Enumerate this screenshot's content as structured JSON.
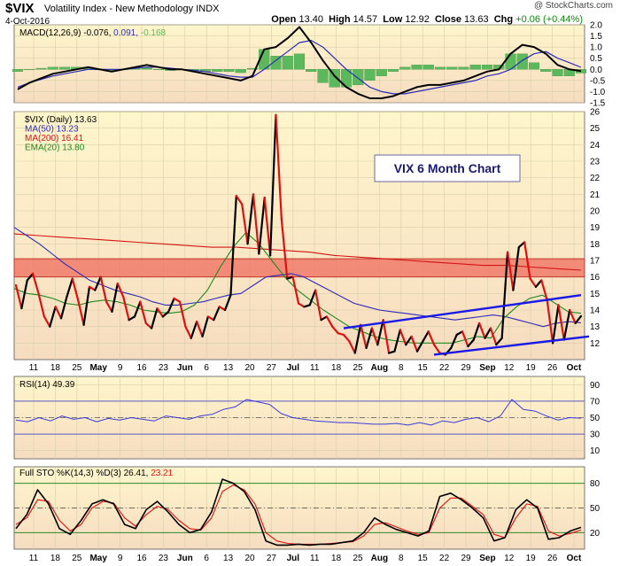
{
  "header": {
    "symbol": "$VIX",
    "name": "Volatility Index - New Methodology INDX",
    "date": "4-Oct-2016",
    "watermark": "@ StockCharts.com",
    "open_label": "Open",
    "open": "13.40",
    "high_label": "High",
    "high": "14.57",
    "low_label": "Low",
    "low": "12.92",
    "close_label": "Close",
    "close": "13.63",
    "chg_label": "Chg",
    "chg": "+0.06 (+0.44%)"
  },
  "colors": {
    "panel_bg_top": "#fff6cc",
    "panel_bg_bottom": "#f6dcc0",
    "price": "#000000",
    "price_down": "#e01010",
    "ma50": "#2a2ab8",
    "ma200": "#d21414",
    "ema20": "#1e8a1e",
    "resistance_zone": "#f07a6a",
    "trendline": "#1a1ae6",
    "macd_hist": "#5cb85c",
    "rsi": "#3b3bd8",
    "sto_k": "#000000",
    "sto_d": "#e01010"
  },
  "annotation": "VIX 6 Month Chart",
  "x_axis_labels": [
    "11",
    "18",
    "25",
    "May",
    "9",
    "16",
    "23",
    "Jun",
    "6",
    "13",
    "20",
    "27",
    "Jul",
    "11",
    "18",
    "25",
    "Aug",
    "8",
    "15",
    "22",
    "29",
    "Sep",
    "12",
    "19",
    "26",
    "Oct"
  ],
  "chart_data": [
    {
      "type": "line",
      "title": "MACD(12,26,9) -0.076, 0.091, -0.168",
      "legend": [
        {
          "label": "MACD(12,26,9)",
          "value": "-0.076",
          "color": "#000000"
        },
        {
          "label": "",
          "value": "0.091",
          "color": "#2a2ab8"
        },
        {
          "label": "",
          "value": "-0.168",
          "color": "#5cb85c"
        }
      ],
      "ylim": [
        -1.5,
        2.0
      ],
      "yticks": [
        "2.0",
        "1.5",
        "1.0",
        "0.5",
        "0.0",
        "-0.5",
        "-1.0",
        "-1.5"
      ],
      "series": [
        {
          "name": "MACD",
          "values": [
            -0.9,
            -0.6,
            -0.4,
            -0.2,
            -0.1,
            0.0,
            0.1,
            0.0,
            -0.1,
            0.0,
            0.1,
            0.2,
            0.1,
            0.0,
            0.0,
            -0.1,
            -0.2,
            -0.3,
            -0.4,
            -0.5,
            -0.3,
            0.9,
            1.0,
            1.4,
            1.9,
            1.2,
            0.4,
            -0.3,
            -0.8,
            -1.1,
            -1.3,
            -1.3,
            -1.2,
            -1.0,
            -0.8,
            -0.7,
            -0.7,
            -0.6,
            -0.5,
            -0.3,
            -0.1,
            0.0,
            0.7,
            1.1,
            1.0,
            0.7,
            0.2,
            0.0,
            -0.076
          ]
        },
        {
          "name": "Signal",
          "values": [
            -0.8,
            -0.6,
            -0.45,
            -0.3,
            -0.2,
            -0.1,
            0.0,
            0.0,
            0.0,
            0.0,
            0.05,
            0.1,
            0.1,
            0.05,
            0.0,
            -0.05,
            -0.1,
            -0.2,
            -0.3,
            -0.35,
            -0.35,
            0.0,
            0.4,
            0.8,
            1.2,
            1.3,
            1.0,
            0.5,
            0.0,
            -0.4,
            -0.8,
            -1.0,
            -1.1,
            -1.1,
            -1.0,
            -0.9,
            -0.8,
            -0.7,
            -0.6,
            -0.5,
            -0.3,
            -0.2,
            0.0,
            0.4,
            0.7,
            0.8,
            0.5,
            0.3,
            0.091
          ]
        },
        {
          "name": "Histogram",
          "values": [
            -0.1,
            0.0,
            0.05,
            0.1,
            0.1,
            0.1,
            0.1,
            0.0,
            -0.1,
            0.0,
            0.05,
            0.1,
            0.0,
            -0.05,
            0.0,
            -0.05,
            -0.1,
            -0.1,
            -0.1,
            -0.15,
            0.05,
            0.9,
            0.6,
            0.6,
            0.7,
            -0.1,
            -0.6,
            -0.8,
            -0.8,
            -0.7,
            -0.5,
            -0.3,
            -0.1,
            0.1,
            0.2,
            0.2,
            0.1,
            0.1,
            0.1,
            0.2,
            0.2,
            0.2,
            0.7,
            0.7,
            0.3,
            -0.1,
            -0.3,
            -0.3,
            -0.168
          ]
        }
      ]
    },
    {
      "type": "line",
      "title": "$VIX (Daily) 13.63",
      "legend": [
        {
          "label": "$VIX (Daily)",
          "value": "13.63",
          "color": "#000000"
        },
        {
          "label": "MA(50)",
          "value": "13.23",
          "color": "#2a2ab8"
        },
        {
          "label": "MA(200)",
          "value": "16.41",
          "color": "#d21414"
        },
        {
          "label": "EMA(20)",
          "value": "13.80",
          "color": "#1e8a1e"
        }
      ],
      "ylim": [
        11,
        26
      ],
      "yticks": [
        "26",
        "25",
        "24",
        "23",
        "22",
        "21",
        "20",
        "19",
        "18",
        "17",
        "16",
        "15",
        "14",
        "13",
        "12"
      ],
      "annotation_box": {
        "label": "VIX 6 Month Chart"
      },
      "resistance_zone": [
        16.0,
        17.1
      ],
      "series": [
        {
          "name": "$VIX (Daily)",
          "values": [
            15.5,
            14.1,
            15.8,
            16.2,
            15.0,
            13.6,
            13.0,
            14.2,
            13.5,
            14.8,
            15.9,
            14.6,
            13.1,
            15.4,
            15.2,
            16.0,
            14.5,
            13.9,
            15.6,
            14.8,
            13.4,
            13.6,
            14.5,
            13.2,
            12.9,
            14.1,
            13.6,
            13.9,
            14.7,
            14.5,
            13.0,
            12.3,
            13.3,
            12.4,
            13.6,
            13.4,
            14.2,
            14.0,
            14.9,
            20.9,
            20.4,
            18.0,
            21.0,
            17.4,
            20.8,
            17.3,
            25.8,
            19.5,
            15.9,
            16.0,
            14.4,
            14.2,
            14.3,
            15.2,
            13.4,
            13.6,
            13.0,
            12.6,
            12.5,
            12.1,
            11.4,
            13.1,
            11.7,
            12.9,
            11.9,
            13.4,
            11.4,
            11.5,
            12.8,
            11.9,
            12.4,
            11.5,
            12.1,
            12.7,
            11.9,
            11.4,
            11.3,
            11.7,
            12.5,
            12.7,
            11.8,
            12.2,
            13.2,
            12.3,
            12.9,
            11.9,
            12.3,
            17.5,
            15.2,
            17.8,
            18.1,
            15.9,
            15.4,
            15.8,
            14.6,
            12.0,
            14.3,
            12.2,
            14.0,
            13.2,
            13.63
          ]
        },
        {
          "name": "MA(50)",
          "values": [
            19.0,
            18.5,
            18.0,
            17.4,
            16.8,
            16.3,
            15.8,
            15.5,
            15.2,
            15.0,
            14.8,
            14.5,
            14.3,
            14.3,
            14.4,
            14.5,
            14.7,
            14.9,
            15.0,
            15.5,
            16.0,
            16.1,
            16.2,
            16.0,
            15.6,
            15.2,
            14.8,
            14.4,
            14.2,
            14.0,
            13.9,
            13.8,
            13.7,
            13.6,
            13.5,
            13.4,
            13.5,
            13.6,
            13.7,
            13.6,
            13.4,
            13.2,
            13.0,
            13.2,
            13.3,
            13.23
          ]
        },
        {
          "name": "MA(200)",
          "values": [
            18.6,
            18.5,
            18.4,
            18.3,
            18.2,
            18.1,
            18.0,
            17.9,
            17.8,
            17.8,
            17.7,
            17.6,
            17.5,
            17.3,
            17.2,
            17.1,
            17.0,
            16.9,
            16.8,
            16.7,
            16.7,
            16.6,
            16.5,
            16.41
          ]
        },
        {
          "name": "EMA(20)",
          "values": [
            15.3,
            15.0,
            14.9,
            14.7,
            14.4,
            14.3,
            14.5,
            14.6,
            14.5,
            14.3,
            14.0,
            13.9,
            13.8,
            13.9,
            14.3,
            15.2,
            16.6,
            17.8,
            18.7,
            18.0,
            17.0,
            16.0,
            15.2,
            14.6,
            14.0,
            13.5,
            13.0,
            12.7,
            12.4,
            12.2,
            12.1,
            12.0,
            12.0,
            12.0,
            12.0,
            12.2,
            12.4,
            12.3,
            13.5,
            14.2,
            14.7,
            14.9,
            14.4,
            13.9,
            13.8
          ]
        }
      ],
      "trendlines": [
        {
          "name": "upper",
          "from": [
            "Jul 21",
            12.9
          ],
          "to": [
            "Oct 4",
            14.9
          ]
        },
        {
          "name": "lower",
          "from": [
            "Aug 19",
            11.3
          ],
          "to": [
            "Oct 4",
            12.4
          ]
        }
      ]
    },
    {
      "type": "line",
      "title": "RSI(14) 49.39",
      "legend": [
        {
          "label": "RSI(14)",
          "value": "49.39",
          "color": "#3b3bd8"
        }
      ],
      "ylim": [
        0,
        100
      ],
      "yticks": [
        "90",
        "70",
        "50",
        "30",
        "10"
      ],
      "series": [
        {
          "name": "RSI(14)",
          "values": [
            47,
            45,
            50,
            46,
            52,
            48,
            50,
            45,
            49,
            47,
            50,
            48,
            46,
            52,
            50,
            48,
            52,
            54,
            60,
            63,
            72,
            69,
            66,
            55,
            50,
            48,
            46,
            45,
            44,
            44,
            43,
            42,
            42,
            43,
            41,
            44,
            41,
            46,
            44,
            48,
            50,
            45,
            52,
            72,
            60,
            58,
            52,
            47,
            50,
            49.39
          ]
        }
      ]
    },
    {
      "type": "line",
      "title": "Full STO %K(14,3) %D(3) 26.41, 23.21",
      "legend": [
        {
          "label": "Full STO %K(14,3) %D(3)",
          "value": "26.41",
          "color": "#000000"
        },
        {
          "label": "",
          "value": "23.21",
          "color": "#e01010"
        }
      ],
      "ylim": [
        0,
        100
      ],
      "yticks": [
        "80",
        "50",
        "20"
      ],
      "series": [
        {
          "name": "%K",
          "values": [
            25,
            42,
            72,
            55,
            25,
            18,
            35,
            55,
            60,
            55,
            30,
            25,
            48,
            58,
            45,
            30,
            20,
            24,
            45,
            85,
            80,
            70,
            48,
            10,
            5,
            5,
            6,
            5,
            6,
            6,
            8,
            10,
            20,
            38,
            30,
            24,
            20,
            16,
            22,
            64,
            68,
            60,
            50,
            38,
            10,
            14,
            48,
            60,
            50,
            12,
            14,
            22,
            26.41
          ]
        },
        {
          "name": "%D",
          "values": [
            30,
            38,
            60,
            58,
            35,
            22,
            30,
            50,
            58,
            56,
            38,
            28,
            42,
            52,
            48,
            35,
            25,
            23,
            38,
            70,
            78,
            72,
            55,
            20,
            10,
            7,
            6,
            6,
            6,
            7,
            8,
            9,
            16,
            30,
            32,
            27,
            22,
            18,
            20,
            50,
            62,
            62,
            52,
            42,
            18,
            14,
            38,
            55,
            52,
            22,
            16,
            19,
            23.21
          ]
        }
      ]
    }
  ]
}
